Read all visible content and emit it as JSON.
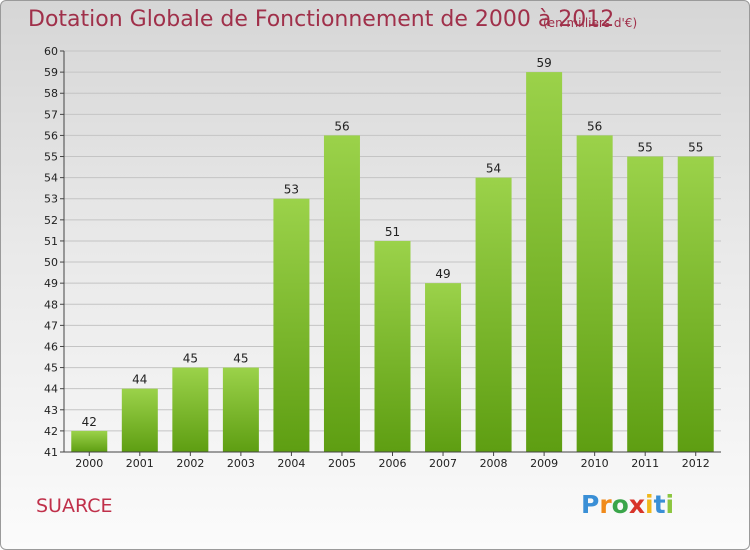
{
  "title": "Dotation Globale de Fonctionnement de 2000 à 2012",
  "unit": "(en milliers d'€)",
  "commune": "SUARCE",
  "logo": {
    "letters": [
      "P",
      "r",
      "o",
      "x",
      "i",
      "t",
      "i"
    ],
    "colors": [
      "#3a8fd6",
      "#f08a1a",
      "#3aa54a",
      "#d8342a",
      "#f0b81a",
      "#3a8fd6",
      "#8cc63f"
    ]
  },
  "chart_data": {
    "type": "bar",
    "categories": [
      "2000",
      "2001",
      "2002",
      "2003",
      "2004",
      "2005",
      "2006",
      "2007",
      "2008",
      "2009",
      "2010",
      "2011",
      "2012"
    ],
    "values": [
      42,
      44,
      45,
      45,
      53,
      56,
      51,
      49,
      54,
      59,
      56,
      55,
      55
    ],
    "ylim": [
      41,
      60
    ],
    "yticks": [
      "41",
      "42",
      "43",
      "44",
      "45",
      "46",
      "47",
      "48",
      "49",
      "50",
      "51",
      "52",
      "53",
      "54",
      "55",
      "56",
      "57",
      "58",
      "59",
      "60"
    ],
    "xlabel": "",
    "ylabel": "",
    "bar_color": "#7fbf2a",
    "grid": true
  }
}
